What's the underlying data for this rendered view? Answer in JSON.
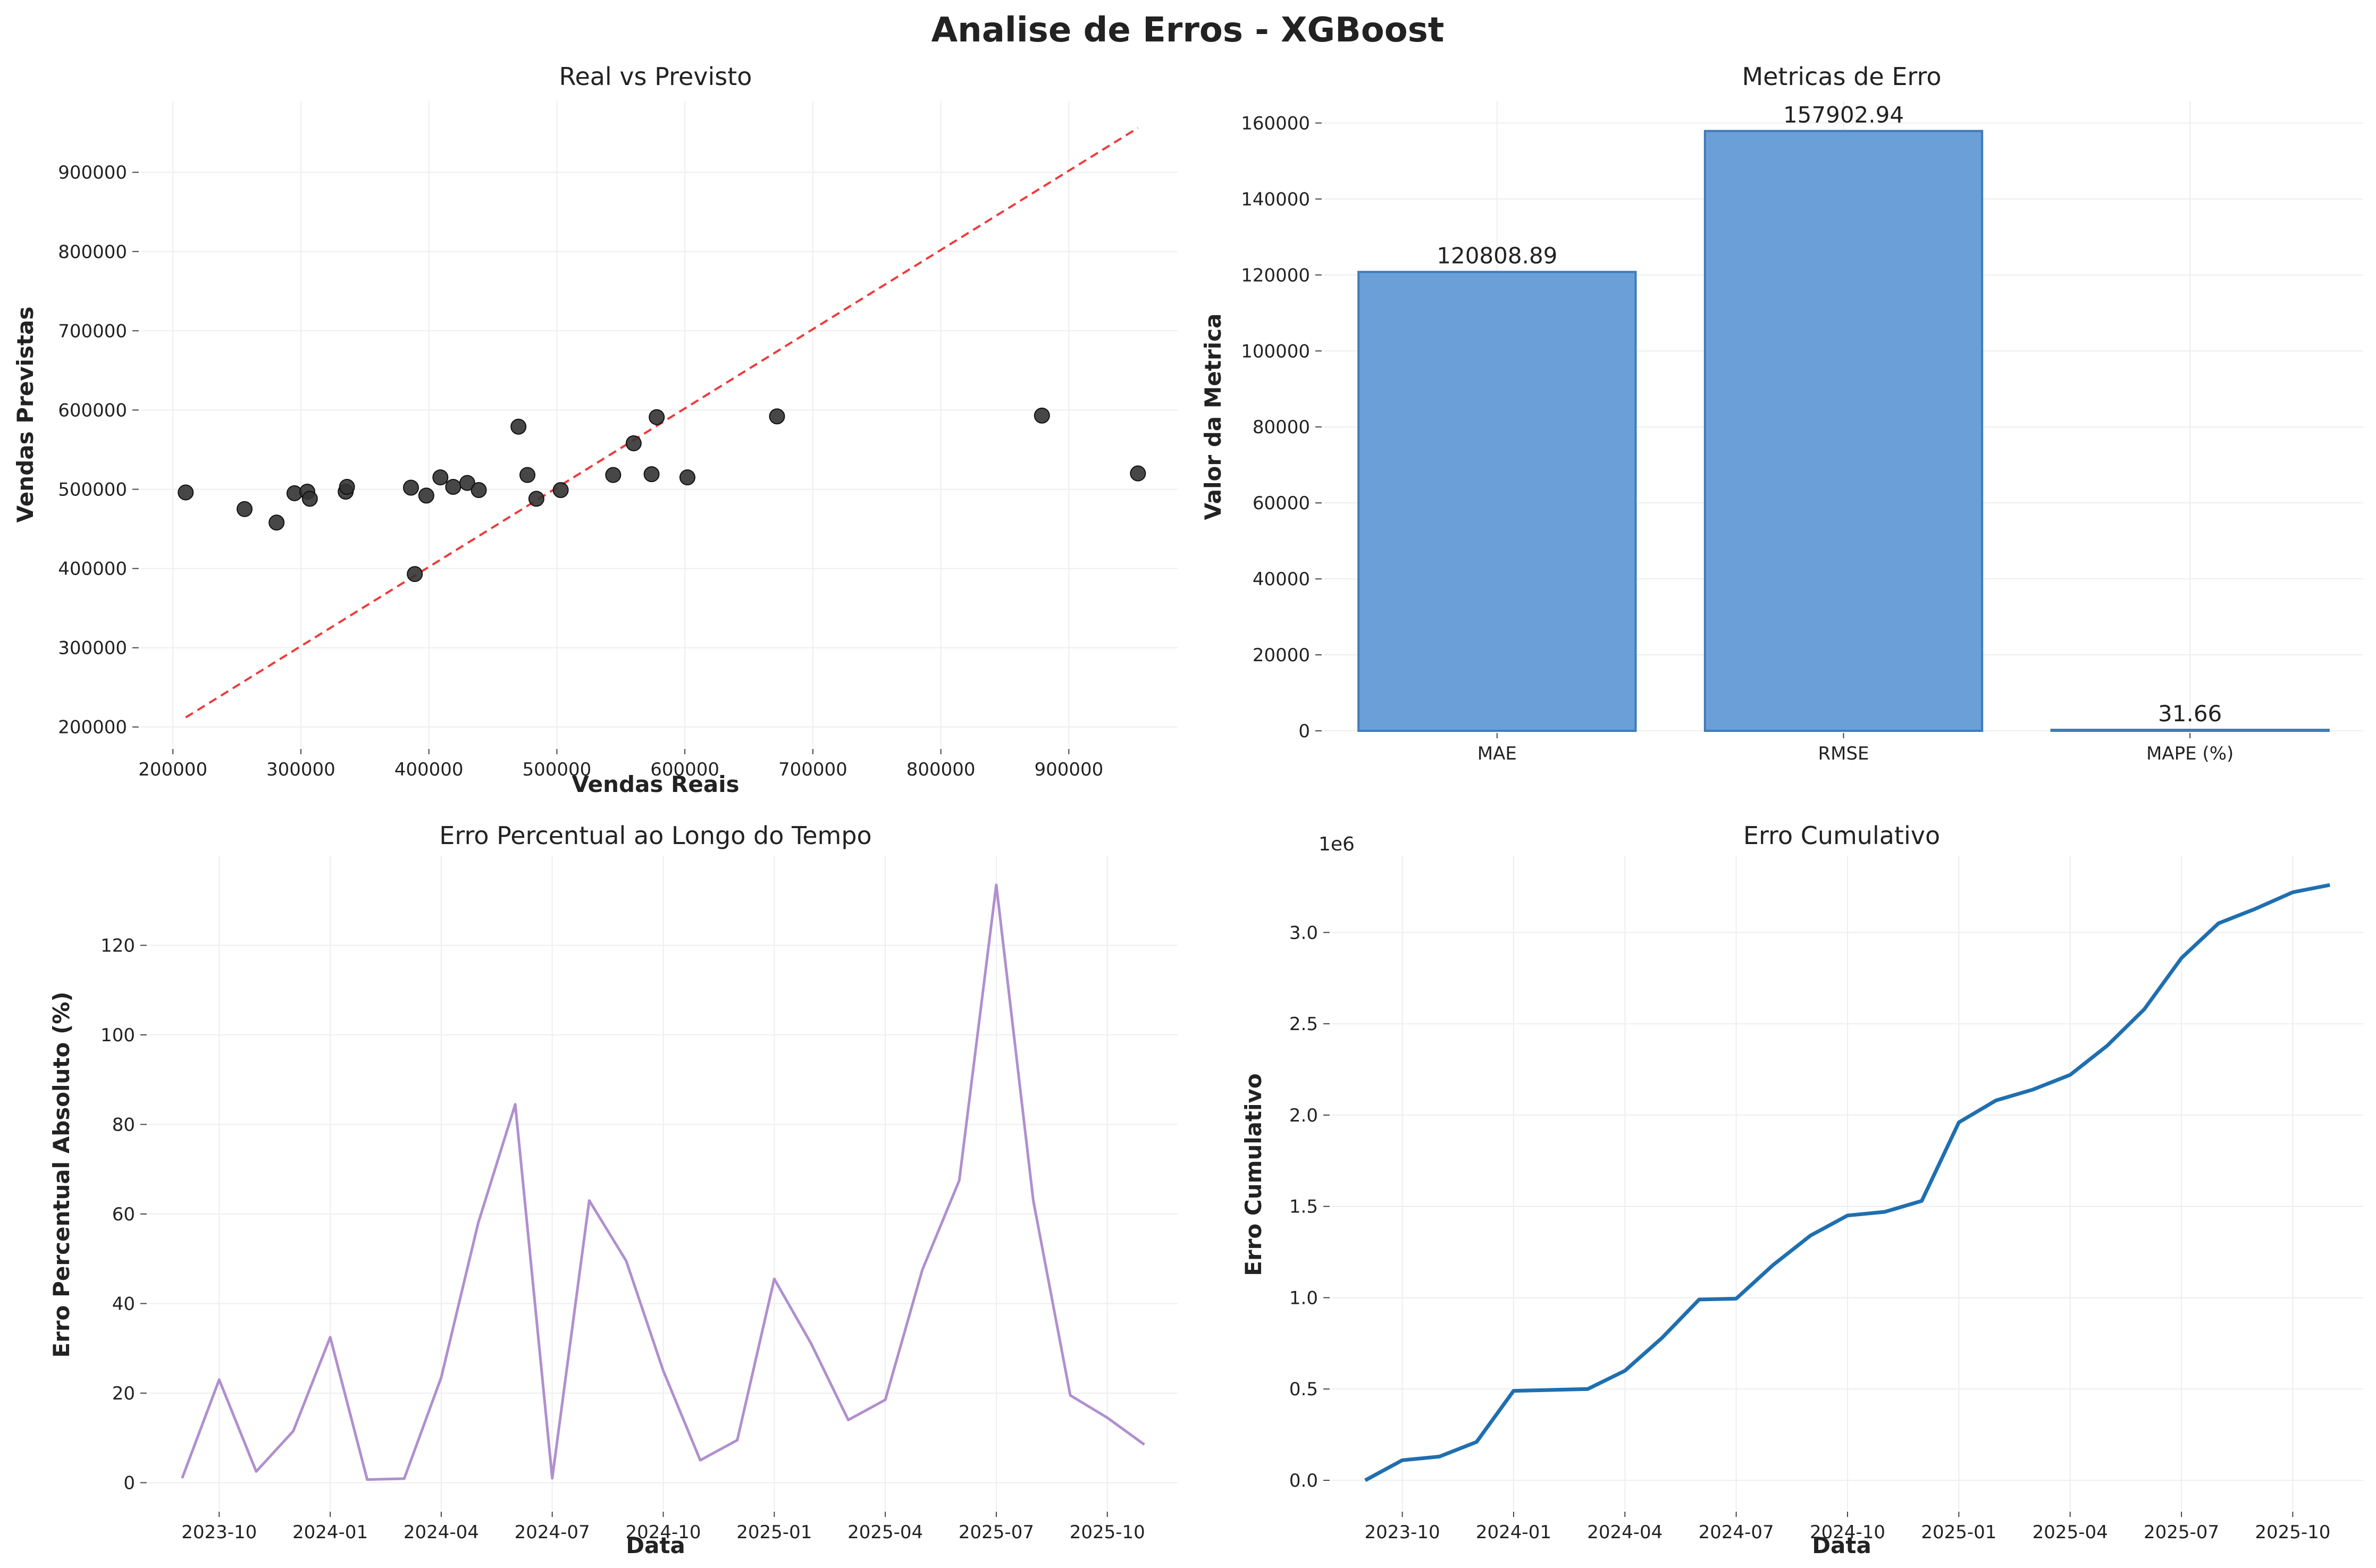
{
  "figure": {
    "title": "Analise de Erros - XGBoost"
  },
  "chart_data": [
    {
      "type": "scatter",
      "title": "Real vs Previsto",
      "xlabel": "Vendas Reais",
      "ylabel": "Vendas Previstas",
      "xlim": [
        175000,
        985000
      ],
      "ylim": [
        175000,
        990000
      ],
      "xticks": [
        200000,
        300000,
        400000,
        500000,
        600000,
        700000,
        800000,
        900000
      ],
      "yticks": [
        200000,
        300000,
        400000,
        500000,
        600000,
        700000,
        800000,
        900000
      ],
      "grid": true,
      "points": [
        {
          "x": 210000,
          "y": 496000
        },
        {
          "x": 256000,
          "y": 475000
        },
        {
          "x": 281000,
          "y": 458000
        },
        {
          "x": 295000,
          "y": 495000
        },
        {
          "x": 305000,
          "y": 497000
        },
        {
          "x": 307000,
          "y": 488000
        },
        {
          "x": 335000,
          "y": 497000
        },
        {
          "x": 336000,
          "y": 503000
        },
        {
          "x": 386000,
          "y": 502000
        },
        {
          "x": 389000,
          "y": 393000
        },
        {
          "x": 398000,
          "y": 492000
        },
        {
          "x": 409000,
          "y": 515000
        },
        {
          "x": 419000,
          "y": 503000
        },
        {
          "x": 430000,
          "y": 508000
        },
        {
          "x": 439000,
          "y": 499000
        },
        {
          "x": 470000,
          "y": 579000
        },
        {
          "x": 477000,
          "y": 518000
        },
        {
          "x": 484000,
          "y": 488000
        },
        {
          "x": 503000,
          "y": 499000
        },
        {
          "x": 544000,
          "y": 518000
        },
        {
          "x": 560000,
          "y": 558000
        },
        {
          "x": 574000,
          "y": 519000
        },
        {
          "x": 578000,
          "y": 591000
        },
        {
          "x": 602000,
          "y": 515000
        },
        {
          "x": 672000,
          "y": 592000
        },
        {
          "x": 879000,
          "y": 593000
        },
        {
          "x": 954000,
          "y": 520000
        }
      ],
      "point_color": "#333333",
      "reference_line": {
        "from": [
          210000,
          212000
        ],
        "to": [
          954000,
          956000
        ],
        "color": "#ef3a3a",
        "style": "dashed"
      }
    },
    {
      "type": "bar",
      "title": "Metricas de Erro",
      "xlabel": "",
      "ylabel": "Valor da Metrica",
      "categories": [
        "MAE",
        "RMSE",
        "MAPE (%)"
      ],
      "values": [
        120808.89,
        157902.94,
        31.66
      ],
      "value_labels": [
        "120808.89",
        "157902.94",
        "31.66"
      ],
      "ylim": [
        0,
        165800
      ],
      "yticks": [
        0,
        20000,
        40000,
        60000,
        80000,
        100000,
        120000,
        140000,
        160000
      ],
      "bar_color": "#6a9fd8",
      "bar_edge": "#3f7bb8",
      "grid": true
    },
    {
      "type": "line",
      "title": "Erro Percentual ao Longo do Tempo",
      "xlabel": "Data",
      "ylabel": "Erro Percentual Absoluto (%)",
      "x_ticks": [
        "2023-10",
        "2024-01",
        "2024-04",
        "2024-07",
        "2024-10",
        "2025-01",
        "2025-04",
        "2025-07",
        "2025-10"
      ],
      "x": [
        "2023-09",
        "2023-10",
        "2023-11",
        "2023-12",
        "2024-01",
        "2024-02",
        "2024-03",
        "2024-04",
        "2024-05",
        "2024-06",
        "2024-07",
        "2024-08",
        "2024-09",
        "2024-10",
        "2024-11",
        "2024-12",
        "2025-01",
        "2025-02",
        "2025-03",
        "2025-04",
        "2025-05",
        "2025-06",
        "2025-07",
        "2025-08",
        "2025-09",
        "2025-10",
        "2025-11"
      ],
      "y": [
        1,
        23,
        2.5,
        11.5,
        32.5,
        0.7,
        0.9,
        23.5,
        58,
        84.5,
        1,
        63,
        49.5,
        25,
        5,
        9.5,
        45.5,
        31,
        14,
        18.5,
        47.5,
        67.5,
        133.5,
        63,
        19.5,
        14.5,
        8.5
      ],
      "ylim": [
        -6,
        140
      ],
      "yticks": [
        0,
        20,
        40,
        60,
        80,
        100,
        120
      ],
      "color": "#b08fcf",
      "grid": true
    },
    {
      "type": "line",
      "title": "Erro Cumulativo",
      "xlabel": "Data",
      "ylabel": "Erro Cumulativo",
      "y_scale_label": "1e6",
      "x_ticks": [
        "2023-10",
        "2024-01",
        "2024-04",
        "2024-07",
        "2024-10",
        "2025-01",
        "2025-04",
        "2025-07",
        "2025-10"
      ],
      "x": [
        "2023-09",
        "2023-10",
        "2023-11",
        "2023-12",
        "2024-01",
        "2024-02",
        "2024-03",
        "2024-04",
        "2024-05",
        "2024-06",
        "2024-07",
        "2024-08",
        "2024-09",
        "2024-10",
        "2024-11",
        "2024-12",
        "2025-01",
        "2025-02",
        "2025-03",
        "2025-04",
        "2025-05",
        "2025-06",
        "2025-07",
        "2025-08",
        "2025-09",
        "2025-10",
        "2025-11"
      ],
      "y": [
        0.0,
        0.11,
        0.13,
        0.21,
        0.49,
        0.495,
        0.5,
        0.6,
        0.78,
        0.99,
        0.995,
        1.18,
        1.34,
        1.45,
        1.47,
        1.53,
        1.96,
        2.08,
        2.14,
        2.22,
        2.38,
        2.58,
        2.86,
        3.05,
        3.13,
        3.22,
        3.26
      ],
      "ylim": [
        -0.16,
        3.42
      ],
      "yticks": [
        "0.0",
        "0.5",
        "1.0",
        "1.5",
        "2.0",
        "2.5",
        "3.0"
      ],
      "ytick_values": [
        0,
        0.5,
        1.0,
        1.5,
        2.0,
        2.5,
        3.0
      ],
      "color": "#1f6fb0",
      "grid": true
    }
  ]
}
